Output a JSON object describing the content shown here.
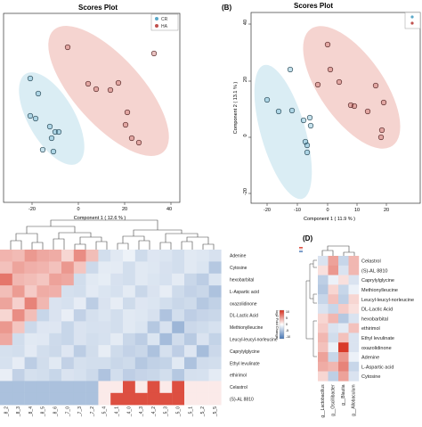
{
  "panelA": {
    "title": "Scores Plot",
    "xlabel": "Component 1 ( 12.6 % )",
    "legend": [
      "CR",
      "HA"
    ],
    "xticks": [
      "-20",
      "0",
      "20",
      "40"
    ],
    "colors": {
      "CR": "#5aa9c9",
      "HA": "#c0504d",
      "CRfill": "#d6ebf3",
      "HAfill": "#f4cfcb"
    }
  },
  "panelB": {
    "label": "(B)",
    "title": "Scores Plot",
    "xlabel": "Component 1 ( 11.9 % )",
    "ylabel": "Component 2 ( 13.1 % )",
    "xticks": [
      "-20",
      "-10",
      "0",
      "10",
      "20"
    ],
    "yticks": [
      "40",
      "20",
      "0",
      "-20"
    ]
  },
  "heatmapC": {
    "rows": [
      "Adenine",
      "Cytosine",
      "hexobarbital",
      "L-Aspartic acid",
      "oxazolidinone",
      "DL-Lactic Acid",
      "Methionylleucine",
      "Leucyl-leucyl-norleucine",
      "Caprylylglycine",
      "Ethyl levulinate",
      "ethirimol",
      "Celastrol",
      "(S)-AL 8810"
    ],
    "colorbar_title": "log2 Fold Change",
    "colorbar_ticks": [
      "10",
      "5",
      "0",
      "-5",
      "-10"
    ],
    "col_labels": [
      "_8_2",
      "_8_3",
      "_8_4",
      "_8_5",
      "_8_6",
      "_7_0",
      "_7_3",
      "_7_2",
      "_5_4",
      "_4_1",
      "_4_0",
      "_4_3",
      "_4_2",
      "_5_3",
      "_5_0",
      "_5_1",
      "_5_2",
      "_5_5"
    ]
  },
  "heatmapD": {
    "label": "(D)",
    "rows": [
      "Celastrol",
      "(S)-AL 8810",
      "Caprylylglycine",
      "Methionylleucine",
      "Leucyl-leucyl-norleucine",
      "DL-Lactic Acid",
      "hexobarbital",
      "ethirimol",
      "Ethyl levulinate",
      "oxazolidinone",
      "Adenine",
      "L-Aspartic acid",
      "Cytosine"
    ],
    "cols": [
      "g__Lactobacillus",
      "g__Oscillibacter",
      "g__Blautia",
      "g__Allobaculum"
    ]
  }
}
